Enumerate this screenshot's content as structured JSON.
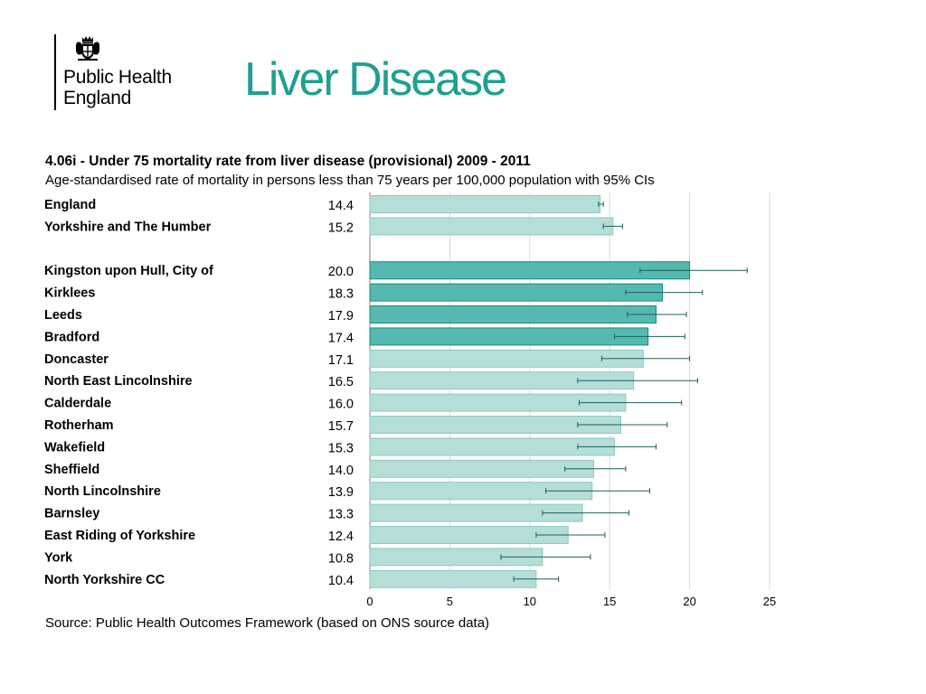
{
  "header": {
    "logo_line1": "Public Health",
    "logo_line2": "England",
    "slide_title": "Liver Disease"
  },
  "colors": {
    "brand": "#1fa090",
    "bar_light": "#b5ded8",
    "bar_light_border": "#8ccac1",
    "bar_dark": "#56b9b0",
    "bar_dark_border": "#168a7e",
    "error_bar": "#1d5f58",
    "grid": "#d9d9d9"
  },
  "chart_data": {
    "type": "bar",
    "orientation": "horizontal",
    "title": "4.06i - Under 75 mortality rate from liver disease (provisional) 2009 - 2011",
    "subtitle": "Age-standardised rate of mortality in persons less than 75 years per 100,000 population with 95% CIs",
    "source": "Source: Public Health Outcomes Framework (based on ONS source data)",
    "xlim": [
      0,
      25
    ],
    "x_ticks": [
      "0",
      "5",
      "10",
      "15",
      "20",
      "25"
    ],
    "grid": true,
    "groups": [
      {
        "rows": [
          {
            "label": "England",
            "value": 14.4,
            "value_label": "14.4",
            "ci": [
              14.3,
              14.6
            ],
            "highlight": false
          },
          {
            "label": "Yorkshire and The Humber",
            "value": 15.2,
            "value_label": "15.2",
            "ci": [
              14.6,
              15.8
            ],
            "highlight": false
          }
        ]
      },
      {
        "rows": [
          {
            "label": "Kingston upon Hull, City of",
            "value": 20.0,
            "value_label": "20.0",
            "ci": [
              16.9,
              23.6
            ],
            "highlight": true
          },
          {
            "label": "Kirklees",
            "value": 18.3,
            "value_label": "18.3",
            "ci": [
              16.0,
              20.8
            ],
            "highlight": true
          },
          {
            "label": "Leeds",
            "value": 17.9,
            "value_label": "17.9",
            "ci": [
              16.1,
              19.8
            ],
            "highlight": true
          },
          {
            "label": "Bradford",
            "value": 17.4,
            "value_label": "17.4",
            "ci": [
              15.3,
              19.7
            ],
            "highlight": true
          },
          {
            "label": "Doncaster",
            "value": 17.1,
            "value_label": "17.1",
            "ci": [
              14.5,
              20.0
            ],
            "highlight": false
          },
          {
            "label": "North East Lincolnshire",
            "value": 16.5,
            "value_label": "16.5",
            "ci": [
              13.0,
              20.5
            ],
            "highlight": false
          },
          {
            "label": "Calderdale",
            "value": 16.0,
            "value_label": "16.0",
            "ci": [
              13.1,
              19.5
            ],
            "highlight": false
          },
          {
            "label": "Rotherham",
            "value": 15.7,
            "value_label": "15.7",
            "ci": [
              13.0,
              18.6
            ],
            "highlight": false
          },
          {
            "label": "Wakefield",
            "value": 15.3,
            "value_label": "15.3",
            "ci": [
              13.0,
              17.9
            ],
            "highlight": false
          },
          {
            "label": "Sheffield",
            "value": 14.0,
            "value_label": "14.0",
            "ci": [
              12.2,
              16.0
            ],
            "highlight": false
          },
          {
            "label": "North Lincolnshire",
            "value": 13.9,
            "value_label": "13.9",
            "ci": [
              11.0,
              17.5
            ],
            "highlight": false
          },
          {
            "label": "Barnsley",
            "value": 13.3,
            "value_label": "13.3",
            "ci": [
              10.8,
              16.2
            ],
            "highlight": false
          },
          {
            "label": "East Riding of Yorkshire",
            "value": 12.4,
            "value_label": "12.4",
            "ci": [
              10.4,
              14.7
            ],
            "highlight": false
          },
          {
            "label": "York",
            "value": 10.8,
            "value_label": "10.8",
            "ci": [
              8.2,
              13.8
            ],
            "highlight": false
          },
          {
            "label": "North Yorkshire CC",
            "value": 10.4,
            "value_label": "10.4",
            "ci": [
              9.0,
              11.8
            ],
            "highlight": false
          }
        ]
      }
    ]
  }
}
